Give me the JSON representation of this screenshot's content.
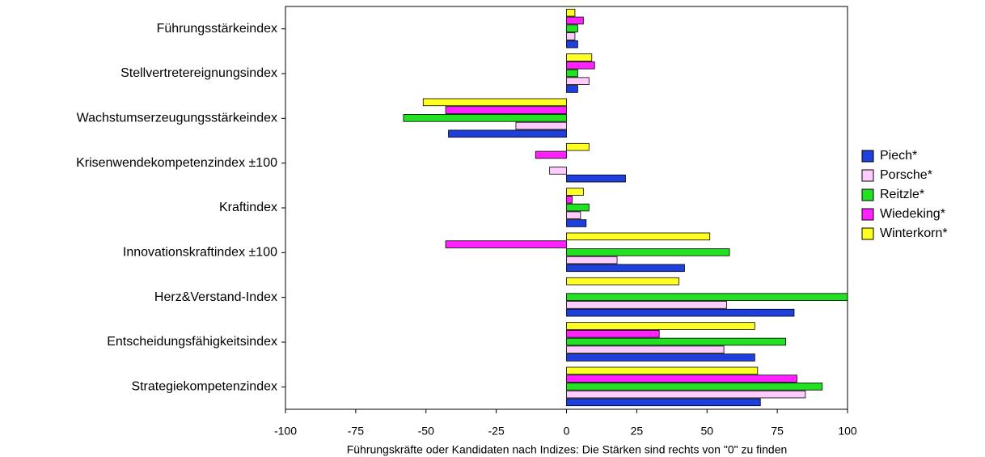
{
  "chart_data": {
    "type": "hbar",
    "x_label": "Führungskräfte oder Kandidaten nach Indizes: Die Stärken sind rechts von \"0\" zu finden",
    "categories": [
      "Führungsstärkeindex",
      "Stellvertretereignungsindex",
      "Wachstumserzeugungsstärkeindex",
      "Krisenwendekompetenzindex ±100",
      "Kraftindex",
      "Innovationskraftindex ±100",
      "Herz&Verstand-Index",
      "Entscheidungsfähigkeitsindex",
      "Strategiekompetenzindex"
    ],
    "series": [
      {
        "name": "Piech*",
        "color": "#1e3fdc",
        "values": [
          4,
          4,
          -42,
          21,
          7,
          42,
          81,
          67,
          69
        ]
      },
      {
        "name": "Porsche*",
        "color": "#ffccff",
        "values": [
          3,
          8,
          -18,
          -6,
          5,
          18,
          57,
          56,
          85
        ]
      },
      {
        "name": "Reitzle*",
        "color": "#22e022",
        "values": [
          4,
          4,
          -58,
          0,
          8,
          58,
          100,
          78,
          91
        ]
      },
      {
        "name": "Wiedeking*",
        "color": "#ff22ff",
        "values": [
          6,
          10,
          -43,
          -11,
          2,
          -43,
          0,
          33,
          82
        ]
      },
      {
        "name": "Winterkorn*",
        "color": "#ffff22",
        "values": [
          3,
          9,
          -51,
          8,
          6,
          51,
          40,
          67,
          68
        ]
      }
    ],
    "xlim": [
      -100,
      100
    ],
    "xticks": [
      -100,
      -75,
      -50,
      -25,
      0,
      25,
      50,
      75,
      100
    ],
    "legend": "right"
  }
}
